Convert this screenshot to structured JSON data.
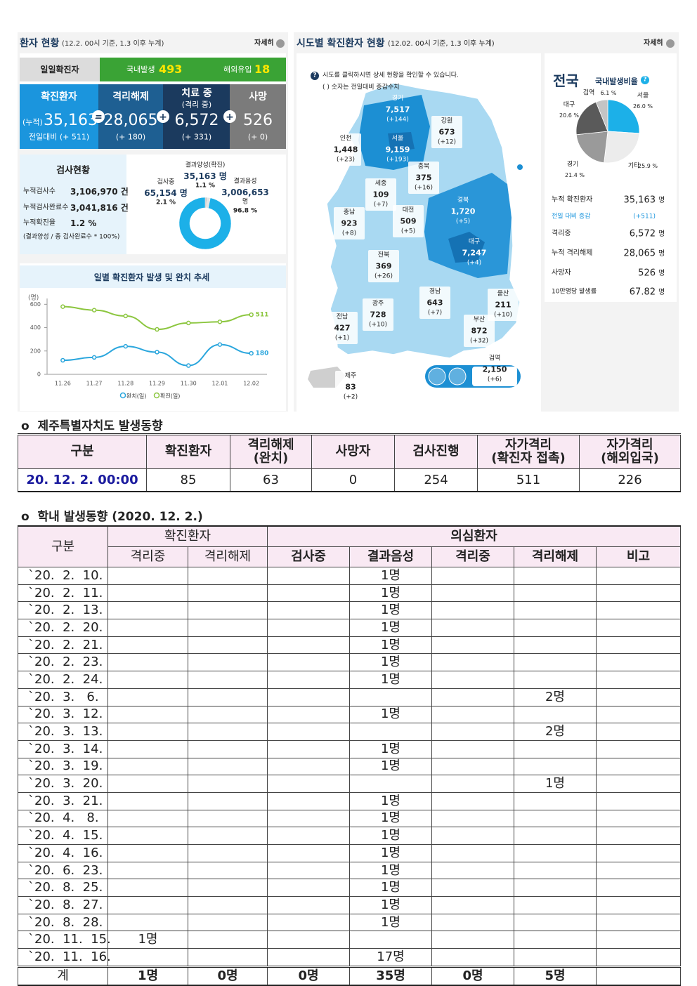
{
  "dashboard": {
    "patients": {
      "title": "환자 현황",
      "subtitle": "(12.2. 00시 기준, 1.3 이후 누계)",
      "more": "자세히",
      "daily": {
        "label": "일일확진자",
        "domestic_label": "국내발생",
        "domestic": "493",
        "overseas_label": "해외유입",
        "overseas": "18"
      },
      "stats": [
        {
          "label": "확진환자",
          "prefix": "(누적)",
          "value": "35,163",
          "change": "전일대비 (+ 511)"
        },
        {
          "label": "격리해제",
          "value": "28,065",
          "change": "(+ 180)"
        },
        {
          "label": "치료 중",
          "sublabel": "(격리 중)",
          "value": "6,572",
          "change": "(+ 331)"
        },
        {
          "label": "사망",
          "value": "526",
          "change": "(+ 0)"
        }
      ],
      "operators": [
        "=",
        "+",
        "+"
      ]
    },
    "tests": {
      "title": "검사현황",
      "rows": [
        {
          "label": "누적검사수",
          "value": "3,106,970 건"
        },
        {
          "label": "누적검사완료수",
          "value": "3,041,816 건"
        },
        {
          "label": "누적확진율",
          "value": "1.2 %"
        }
      ],
      "note": "(결과양성 / 총 검사완료수 * 100%)",
      "donut": [
        {
          "name": "결과양성(확진)",
          "count": "35,163 명",
          "value": 1.1,
          "label": "1.1 %",
          "color": "#bdbdbd"
        },
        {
          "name": "검사중",
          "count": "65,154 명",
          "value": 2.1,
          "label": "2.1 %",
          "color": "#e4e4e4"
        },
        {
          "name": "결과음성",
          "count": "3,006,653",
          "unit": "명",
          "value": 96.8,
          "label": "96.8 %",
          "color": "#1cb0e8"
        }
      ]
    },
    "trend": {
      "type": "line",
      "title": "일별 확진환자 발생 및 완치 추세",
      "y_unit": "(명)",
      "categories": [
        "11.26",
        "11.27",
        "11.28",
        "11.29",
        "11.30",
        "12.01",
        "12.02"
      ],
      "ylim": [
        0,
        650
      ],
      "yticks": [
        0,
        200,
        400,
        600
      ],
      "series": [
        {
          "name": "완치(일)",
          "color": "#2aa6dd",
          "values": [
            120,
            145,
            240,
            190,
            75,
            255,
            180
          ]
        },
        {
          "name": "확진(일)",
          "color": "#8cc63f",
          "values": [
            580,
            550,
            500,
            385,
            440,
            450,
            511
          ]
        }
      ]
    },
    "regions": {
      "title": "시도별 확진환자 현황",
      "subtitle": "(12.02. 00시 기준, 1.3 이후 누계)",
      "more": "자세히",
      "help_icon": "?",
      "notes": [
        "시도를 클릭하시면 상세 현황을 확인할 수 있습니다.",
        "( ) 숫자는 전일대비 증감수치"
      ],
      "items": [
        {
          "name": "경기",
          "total": "7,517",
          "change": "(+144)"
        },
        {
          "name": "강원",
          "total": "673",
          "change": "(+12)"
        },
        {
          "name": "인천",
          "total": "1,448",
          "change": "(+23)"
        },
        {
          "name": "서울",
          "total": "9,159",
          "change": "(+193)"
        },
        {
          "name": "충북",
          "total": "375",
          "change": "(+16)"
        },
        {
          "name": "세종",
          "total": "109",
          "change": "(+7)"
        },
        {
          "name": "충남",
          "total": "923",
          "change": "(+8)"
        },
        {
          "name": "대전",
          "total": "509",
          "change": "(+5)"
        },
        {
          "name": "경북",
          "total": "1,720",
          "change": "(+5)"
        },
        {
          "name": "대구",
          "total": "7,247",
          "change": "(+4)"
        },
        {
          "name": "전북",
          "total": "369",
          "change": "(+26)"
        },
        {
          "name": "경남",
          "total": "643",
          "change": "(+7)"
        },
        {
          "name": "울산",
          "total": "211",
          "change": "(+10)"
        },
        {
          "name": "광주",
          "total": "728",
          "change": "(+10)"
        },
        {
          "name": "전남",
          "total": "427",
          "change": "(+1)"
        },
        {
          "name": "부산",
          "total": "872",
          "change": "(+32)"
        },
        {
          "name": "제주",
          "total": "83",
          "change": "(+2)"
        },
        {
          "name": "검역",
          "total": "2,150",
          "change": "(+6)"
        }
      ]
    },
    "national": {
      "title": "전국",
      "ratio_title": "국내발생비율",
      "help_icon": "?",
      "pie": [
        {
          "name": "서울",
          "value": 26.0,
          "label": "26.0 %",
          "color": "#1cb0e8"
        },
        {
          "name": "기타",
          "value": 25.9,
          "label": "25.9 %",
          "color": "#ececec"
        },
        {
          "name": "경기",
          "value": 21.4,
          "label": "21.4 %",
          "color": "#9a9a9a"
        },
        {
          "name": "대구",
          "value": 20.6,
          "label": "20.6 %",
          "color": "#5a5a5a"
        },
        {
          "name": "검역",
          "value": 6.1,
          "label": "6.1 %",
          "color": "#c4c4c4"
        }
      ],
      "stats": [
        {
          "label": "누적 확진환자",
          "value": "35,163",
          "unit": "명"
        },
        {
          "label": "전일 대비 증감",
          "value": "(+511)"
        },
        {
          "label": "격리중",
          "value": "6,572",
          "unit": "명"
        },
        {
          "label": "누적 격리해제",
          "value": "28,065",
          "unit": "명"
        },
        {
          "label": "사망자",
          "value": "526",
          "unit": "명"
        },
        {
          "label": "10만명당 발생률",
          "value": "67.82",
          "unit": "명"
        }
      ]
    }
  },
  "jeju": {
    "heading": "o  제주특별자치도 발생동향",
    "headers": [
      "구분",
      "확진환자",
      "격리해제\n(완치)",
      "사망자",
      "검사진행",
      "자가격리\n(확진자 접촉)",
      "자가격리\n(해외입국)"
    ],
    "row": [
      "20. 12. 2. 00:00",
      "85",
      "63",
      "0",
      "254",
      "511",
      "226"
    ]
  },
  "school": {
    "heading": "o  학내 발생동향 (2020. 12. 2.)",
    "group_label": "구분",
    "confirmed": "확진환자",
    "suspected": "의심환자",
    "columns": [
      "격리중",
      "격리해제",
      "검사중",
      "결과음성",
      "격리중",
      "격리해제",
      "비고"
    ],
    "rows": [
      [
        "`20.  2.  10.",
        null,
        null,
        null,
        "1명",
        null,
        null,
        null
      ],
      [
        "`20.  2.  11.",
        null,
        null,
        null,
        "1명",
        null,
        null,
        null
      ],
      [
        "`20.  2.  13.",
        null,
        null,
        null,
        "1명",
        null,
        null,
        null
      ],
      [
        "`20.  2.  20.",
        null,
        null,
        null,
        "1명",
        null,
        null,
        null
      ],
      [
        "`20.  2.  21.",
        null,
        null,
        null,
        "1명",
        null,
        null,
        null
      ],
      [
        "`20.  2.  23.",
        null,
        null,
        null,
        "1명",
        null,
        null,
        null
      ],
      [
        "`20.  2.  24.",
        null,
        null,
        null,
        "1명",
        null,
        null,
        null
      ],
      [
        "`20.  3.   6.",
        null,
        null,
        null,
        null,
        null,
        "2명",
        null
      ],
      [
        "`20.  3.  12.",
        null,
        null,
        null,
        "1명",
        null,
        null,
        null
      ],
      [
        "`20.  3.  13.",
        null,
        null,
        null,
        null,
        null,
        "2명",
        null
      ],
      [
        "`20.  3.  14.",
        null,
        null,
        null,
        "1명",
        null,
        null,
        null
      ],
      [
        "`20.  3.  19.",
        null,
        null,
        null,
        "1명",
        null,
        null,
        null
      ],
      [
        "`20.  3.  20.",
        null,
        null,
        null,
        null,
        null,
        "1명",
        null
      ],
      [
        "`20.  3.  21.",
        null,
        null,
        null,
        "1명",
        null,
        null,
        null
      ],
      [
        "`20.  4.   8.",
        null,
        null,
        null,
        "1명",
        null,
        null,
        null
      ],
      [
        "`20.  4.  15.",
        null,
        null,
        null,
        "1명",
        null,
        null,
        null
      ],
      [
        "`20.  4.  16.",
        null,
        null,
        null,
        "1명",
        null,
        null,
        null
      ],
      [
        "`20.  6.  23.",
        null,
        null,
        null,
        "1명",
        null,
        null,
        null
      ],
      [
        "`20.  8.  25.",
        null,
        null,
        null,
        "1명",
        null,
        null,
        null
      ],
      [
        "`20.  8.  27.",
        null,
        null,
        null,
        "1명",
        null,
        null,
        null
      ],
      [
        "`20.  8.  28.",
        null,
        null,
        null,
        "1명",
        null,
        null,
        null
      ],
      [
        "`20.  11.  15.",
        "1명",
        null,
        null,
        null,
        null,
        null,
        null
      ],
      [
        "`20.  11.  16.",
        null,
        null,
        null,
        "17명",
        null,
        null,
        null
      ]
    ],
    "total": [
      "계",
      "1명",
      "0명",
      "0명",
      "35명",
      "0명",
      "5명",
      null
    ]
  }
}
